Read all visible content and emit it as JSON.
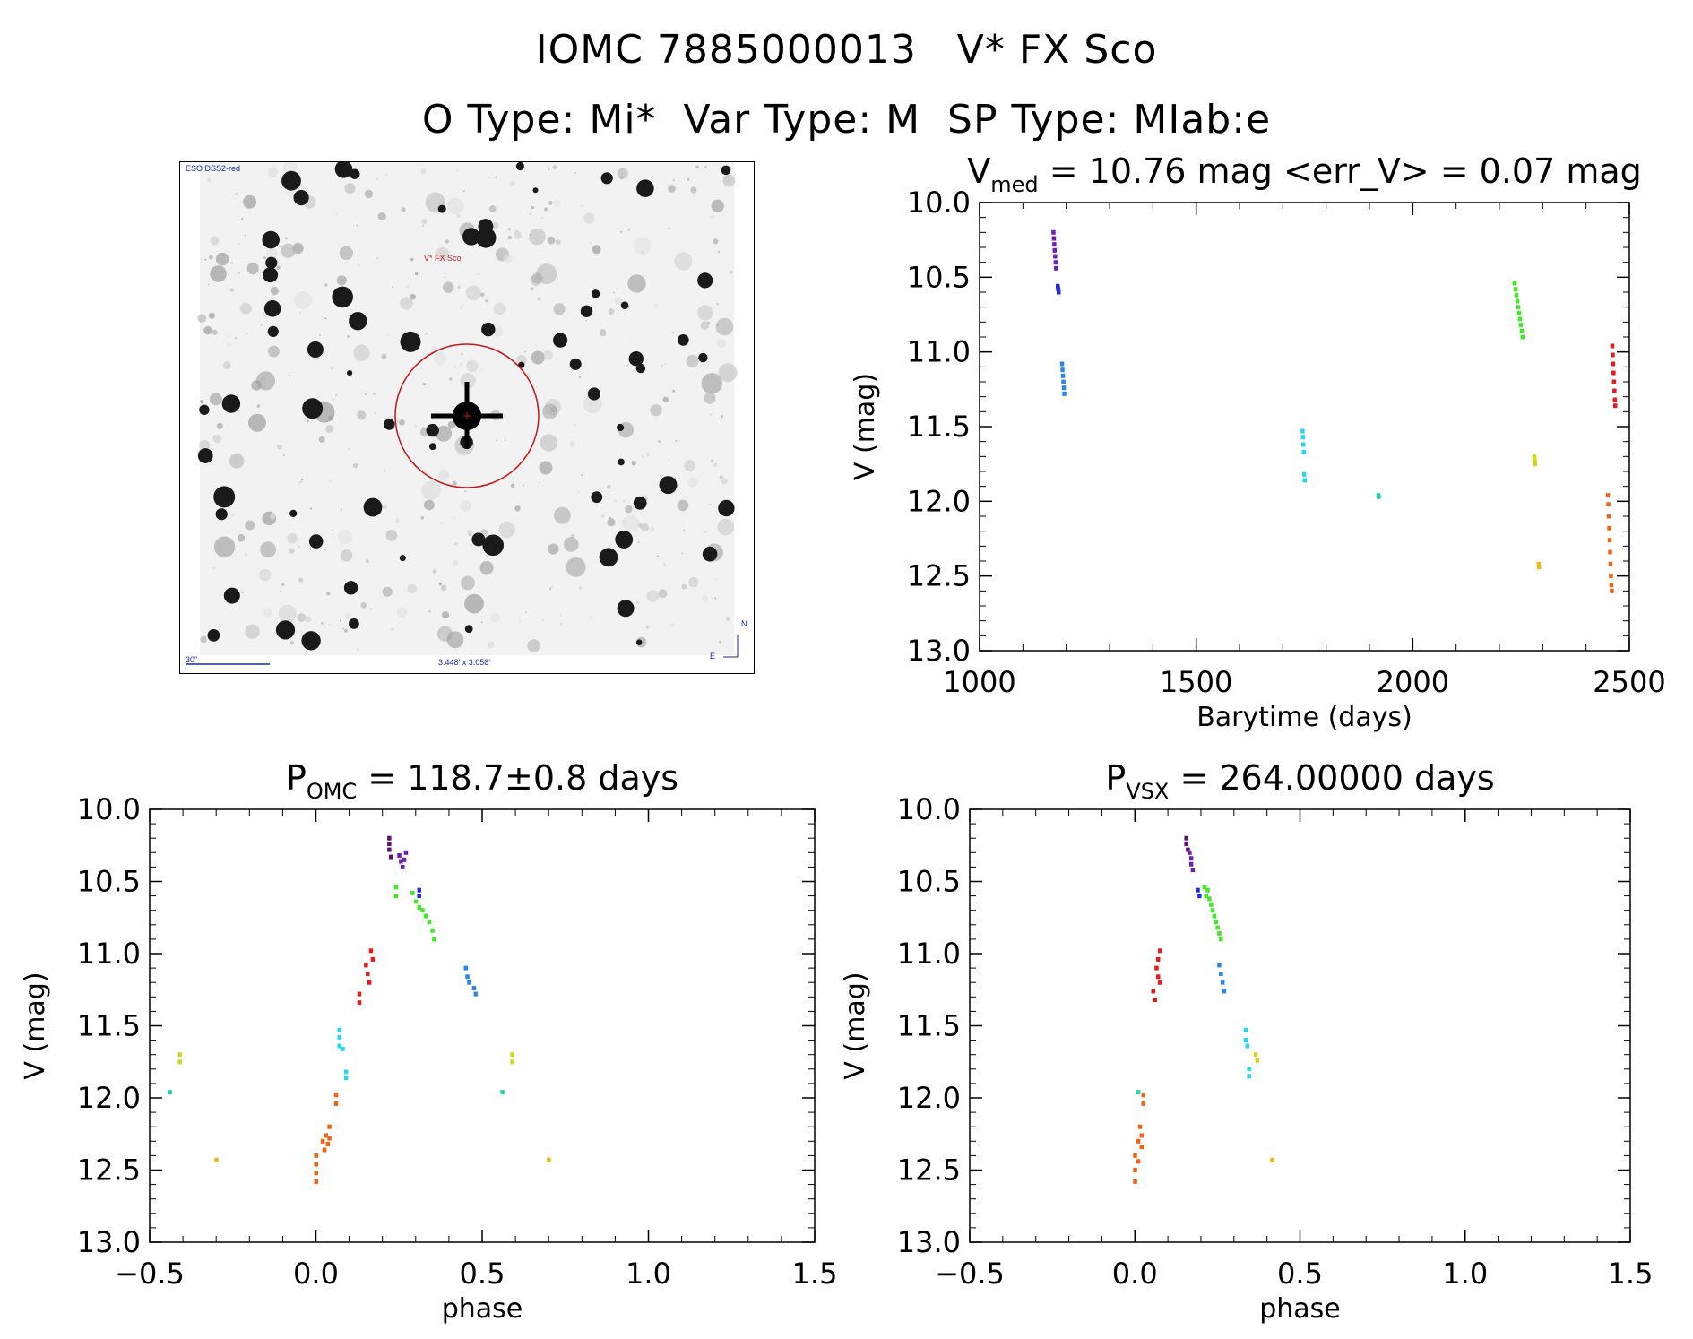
{
  "header": {
    "line1": "IOMC 7885000013   V* FX Sco",
    "line2": "O Type: Mi*  Var Type: M  SP Type: MIab:e"
  },
  "image_panel": {
    "survey_label": "ESO DSS2-red",
    "object_label": "V* FX Sco",
    "scale_label": "30\"",
    "fov_label": "3.448' x 3.058'",
    "north_label": "N",
    "east_label": "E"
  },
  "colors": {
    "purple_dark": "#5a1470",
    "purple": "#6a1fb5",
    "blue": "#1f2ee0",
    "sky": "#2a86e8",
    "cyan": "#22d8ee",
    "teal": "#1fd8a8",
    "green": "#44e82a",
    "yellow": "#d4d41a",
    "orange_yellow": "#f0b818",
    "orange": "#f06414",
    "red": "#e81a1a"
  },
  "chart_data": [
    {
      "id": "lightcurve",
      "type": "scatter",
      "title_main": "V",
      "title_sub": "med",
      "title_rest": " = 10.76 mag <err_V> = 0.07 mag",
      "xlabel": "Barytime (days)",
      "ylabel": "V (mag)",
      "xlim": [
        1000,
        2500
      ],
      "ylim": [
        13.0,
        10.0
      ],
      "xticks": [
        "1000",
        "1500",
        "2000",
        "2500"
      ],
      "yticks": [
        "10.0",
        "10.5",
        "11.0",
        "11.5",
        "12.0",
        "12.5",
        "13.0"
      ],
      "series": [
        {
          "color": "purple",
          "points": [
            [
              1170,
              10.2
            ],
            [
              1171,
              10.24
            ],
            [
              1172,
              10.28
            ],
            [
              1173,
              10.32
            ],
            [
              1174,
              10.36
            ],
            [
              1175,
              10.4
            ],
            [
              1176,
              10.44
            ]
          ]
        },
        {
          "color": "blue",
          "points": [
            [
              1180,
              10.56
            ],
            [
              1181,
              10.58
            ],
            [
              1182,
              10.6
            ]
          ]
        },
        {
          "color": "sky",
          "points": [
            [
              1190,
              11.08
            ],
            [
              1191,
              11.12
            ],
            [
              1192,
              11.16
            ],
            [
              1193,
              11.2
            ],
            [
              1194,
              11.24
            ],
            [
              1195,
              11.28
            ]
          ]
        },
        {
          "color": "cyan",
          "points": [
            [
              1745,
              11.53
            ],
            [
              1746,
              11.57
            ],
            [
              1747,
              11.62
            ],
            [
              1748,
              11.67
            ],
            [
              1749,
              11.82
            ],
            [
              1750,
              11.86
            ]
          ]
        },
        {
          "color": "teal",
          "points": [
            [
              1920,
              11.96
            ],
            [
              1921,
              11.97
            ]
          ]
        },
        {
          "color": "green",
          "points": [
            [
              2235,
              10.54
            ],
            [
              2237,
              10.58
            ],
            [
              2239,
              10.62
            ],
            [
              2241,
              10.66
            ],
            [
              2243,
              10.7
            ],
            [
              2245,
              10.74
            ],
            [
              2247,
              10.78
            ],
            [
              2249,
              10.82
            ],
            [
              2251,
              10.86
            ],
            [
              2253,
              10.9
            ]
          ]
        },
        {
          "color": "yellow",
          "points": [
            [
              2280,
              11.7
            ],
            [
              2281,
              11.73
            ],
            [
              2282,
              11.75
            ]
          ]
        },
        {
          "color": "orange_yellow",
          "points": [
            [
              2290,
              12.42
            ],
            [
              2291,
              12.44
            ]
          ]
        },
        {
          "color": "red",
          "points": [
            [
              2460,
              10.96
            ],
            [
              2461,
              11.02
            ],
            [
              2462,
              11.08
            ],
            [
              2463,
              11.14
            ],
            [
              2464,
              11.2
            ],
            [
              2465,
              11.26
            ],
            [
              2466,
              11.32
            ],
            [
              2467,
              11.36
            ]
          ]
        },
        {
          "color": "orange",
          "points": [
            [
              2450,
              11.96
            ],
            [
              2451,
              12.02
            ],
            [
              2452,
              12.1
            ],
            [
              2453,
              12.18
            ],
            [
              2454,
              12.26
            ],
            [
              2455,
              12.34
            ],
            [
              2456,
              12.42
            ],
            [
              2457,
              12.5
            ],
            [
              2458,
              12.56
            ],
            [
              2459,
              12.6
            ]
          ]
        }
      ]
    },
    {
      "id": "phase_omc",
      "type": "scatter",
      "title_main": "P",
      "title_sub": "OMC",
      "title_rest": " = 118.7±0.8 days",
      "xlabel": "phase",
      "ylabel": "V (mag)",
      "xlim": [
        -0.5,
        1.5
      ],
      "ylim": [
        13.0,
        10.0
      ],
      "xticks": [
        "−0.5",
        "0.0",
        "0.5",
        "1.0",
        "1.5"
      ],
      "yticks": [
        "10.0",
        "10.5",
        "11.0",
        "11.5",
        "12.0",
        "12.5",
        "13.0"
      ],
      "series": [
        {
          "color": "purple_dark",
          "points": [
            [
              0.22,
              10.2
            ],
            [
              0.22,
              10.24
            ],
            [
              0.22,
              10.28
            ],
            [
              0.225,
              10.33
            ]
          ]
        },
        {
          "color": "purple",
          "points": [
            [
              0.25,
              10.32
            ],
            [
              0.255,
              10.36
            ],
            [
              0.26,
              10.4
            ],
            [
              0.265,
              10.35
            ],
            [
              0.27,
              10.3
            ]
          ]
        },
        {
          "color": "blue",
          "points": [
            [
              0.31,
              10.56
            ],
            [
              0.31,
              10.6
            ]
          ]
        },
        {
          "color": "green",
          "points": [
            [
              0.24,
              10.54
            ],
            [
              0.24,
              10.6
            ],
            [
              0.29,
              10.58
            ],
            [
              0.3,
              10.64
            ],
            [
              0.31,
              10.68
            ],
            [
              0.32,
              10.7
            ],
            [
              0.33,
              10.74
            ],
            [
              0.34,
              10.78
            ],
            [
              0.35,
              10.84
            ],
            [
              0.355,
              10.9
            ]
          ]
        },
        {
          "color": "red",
          "points": [
            [
              0.13,
              11.28
            ],
            [
              0.13,
              11.34
            ],
            [
              0.15,
              11.08
            ],
            [
              0.155,
              11.14
            ],
            [
              0.16,
              11.2
            ],
            [
              0.165,
              10.98
            ],
            [
              0.17,
              11.04
            ]
          ]
        },
        {
          "color": "sky",
          "points": [
            [
              0.45,
              11.1
            ],
            [
              0.455,
              11.16
            ],
            [
              0.46,
              11.2
            ],
            [
              0.475,
              11.24
            ],
            [
              0.48,
              11.28
            ]
          ]
        },
        {
          "color": "cyan",
          "points": [
            [
              0.07,
              11.53
            ],
            [
              0.07,
              11.58
            ],
            [
              0.07,
              11.64
            ],
            [
              0.08,
              11.66
            ],
            [
              0.09,
              11.82
            ],
            [
              0.09,
              11.86
            ]
          ]
        },
        {
          "color": "yellow",
          "points": [
            [
              -0.41,
              11.7
            ],
            [
              -0.41,
              11.75
            ],
            [
              0.59,
              11.7
            ],
            [
              0.59,
              11.75
            ]
          ]
        },
        {
          "color": "teal",
          "points": [
            [
              -0.44,
              11.96
            ],
            [
              0.56,
              11.96
            ]
          ]
        },
        {
          "color": "orange_yellow",
          "points": [
            [
              -0.3,
              12.43
            ],
            [
              0.7,
              12.43
            ]
          ]
        },
        {
          "color": "orange",
          "points": [
            [
              0.0,
              12.4
            ],
            [
              0.0,
              12.46
            ],
            [
              0.0,
              12.52
            ],
            [
              0.0,
              12.58
            ],
            [
              0.02,
              12.3
            ],
            [
              0.025,
              12.36
            ],
            [
              0.03,
              12.26
            ],
            [
              0.035,
              12.32
            ],
            [
              0.04,
              12.2
            ],
            [
              0.04,
              12.28
            ],
            [
              0.06,
              11.98
            ],
            [
              0.06,
              12.04
            ]
          ]
        }
      ]
    },
    {
      "id": "phase_vsx",
      "type": "scatter",
      "title_main": "P",
      "title_sub": "VSX",
      "title_rest": " = 264.00000 days",
      "xlabel": "phase",
      "ylabel": "V (mag)",
      "xlim": [
        -0.5,
        1.5
      ],
      "ylim": [
        13.0,
        10.0
      ],
      "xticks": [
        "−0.5",
        "0.0",
        "0.5",
        "1.0",
        "1.5"
      ],
      "yticks": [
        "10.0",
        "10.5",
        "11.0",
        "11.5",
        "12.0",
        "12.5",
        "13.0"
      ],
      "series": [
        {
          "color": "purple_dark",
          "points": [
            [
              0.155,
              10.2
            ],
            [
              0.155,
              10.24
            ],
            [
              0.16,
              10.28
            ]
          ]
        },
        {
          "color": "purple",
          "points": [
            [
              0.165,
              10.3
            ],
            [
              0.17,
              10.34
            ],
            [
              0.17,
              10.38
            ],
            [
              0.175,
              10.42
            ]
          ]
        },
        {
          "color": "blue",
          "points": [
            [
              0.19,
              10.56
            ],
            [
              0.195,
              10.6
            ]
          ]
        },
        {
          "color": "green",
          "points": [
            [
              0.21,
              10.54
            ],
            [
              0.215,
              10.6
            ],
            [
              0.22,
              10.56
            ],
            [
              0.225,
              10.62
            ],
            [
              0.23,
              10.66
            ],
            [
              0.235,
              10.7
            ],
            [
              0.24,
              10.74
            ],
            [
              0.245,
              10.78
            ],
            [
              0.25,
              10.82
            ],
            [
              0.255,
              10.86
            ],
            [
              0.26,
              10.9
            ]
          ]
        },
        {
          "color": "red",
          "points": [
            [
              0.055,
              11.26
            ],
            [
              0.06,
              11.32
            ],
            [
              0.065,
              11.1
            ],
            [
              0.07,
              11.04
            ],
            [
              0.07,
              11.16
            ],
            [
              0.075,
              10.98
            ],
            [
              0.075,
              11.2
            ]
          ]
        },
        {
          "color": "sky",
          "points": [
            [
              0.255,
              11.08
            ],
            [
              0.26,
              11.14
            ],
            [
              0.265,
              11.2
            ],
            [
              0.27,
              11.26
            ]
          ]
        },
        {
          "color": "cyan",
          "points": [
            [
              0.335,
              11.53
            ],
            [
              0.335,
              11.6
            ],
            [
              0.34,
              11.64
            ],
            [
              0.345,
              11.8
            ],
            [
              0.345,
              11.85
            ]
          ]
        },
        {
          "color": "yellow",
          "points": [
            [
              0.365,
              11.7
            ],
            [
              0.37,
              11.74
            ]
          ]
        },
        {
          "color": "teal",
          "points": [
            [
              0.01,
              11.96
            ]
          ]
        },
        {
          "color": "orange_yellow",
          "points": [
            [
              0.415,
              12.43
            ]
          ]
        },
        {
          "color": "orange",
          "points": [
            [
              0.0,
              12.4
            ],
            [
              0.0,
              12.5
            ],
            [
              0.0,
              12.58
            ],
            [
              0.01,
              12.3
            ],
            [
              0.01,
              12.44
            ],
            [
              0.015,
              12.2
            ],
            [
              0.02,
              12.26
            ],
            [
              0.02,
              12.34
            ],
            [
              0.025,
              11.98
            ],
            [
              0.025,
              12.04
            ]
          ]
        }
      ]
    }
  ]
}
